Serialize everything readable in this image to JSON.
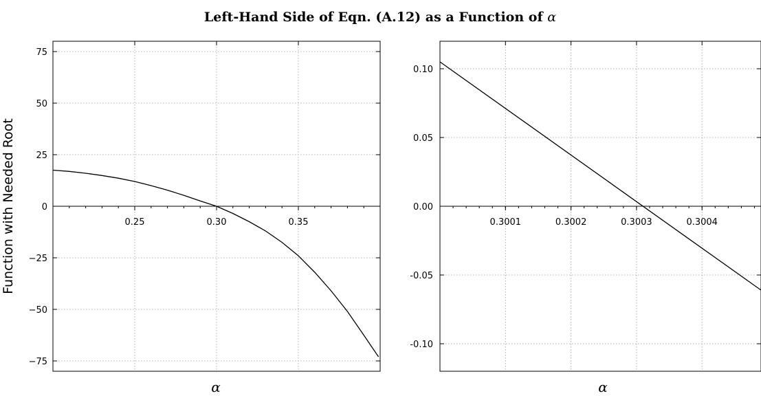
{
  "figure": {
    "title_main": "Left-Hand Side of Eqn. (A.12) as a Function of ",
    "title_symbol": "α"
  },
  "chart_data": [
    {
      "type": "line",
      "xlabel": "α",
      "ylabel": "Function with Needed Root",
      "xlim": [
        0.2,
        0.4
      ],
      "ylim": [
        -80,
        80
      ],
      "xticks": [
        0.25,
        0.3,
        0.35
      ],
      "xtick_labels": [
        "0.25",
        "0.30",
        "0.35"
      ],
      "yticks": [
        75,
        50,
        25,
        0,
        -25,
        -50,
        -75
      ],
      "ytick_labels": [
        "75",
        "50",
        "25",
        "0",
        "−25",
        "−50",
        "−75"
      ],
      "grid": true,
      "x_axis_at_y": 0,
      "series": [
        {
          "x": [
            0.2,
            0.21,
            0.22,
            0.23,
            0.24,
            0.25,
            0.26,
            0.27,
            0.28,
            0.29,
            0.3,
            0.31,
            0.32,
            0.33,
            0.34,
            0.35,
            0.36,
            0.37,
            0.38,
            0.39,
            0.399
          ],
          "y": [
            17.5,
            16.9,
            16.0,
            14.9,
            13.6,
            12.0,
            10.0,
            7.8,
            5.3,
            2.6,
            0.0,
            -3.5,
            -7.5,
            -12.0,
            -17.5,
            -24.0,
            -32.0,
            -41.0,
            -51.0,
            -62.5,
            -73.0
          ]
        }
      ]
    },
    {
      "type": "line",
      "xlabel": "α",
      "ylabel": "",
      "xlim": [
        0.3,
        0.30049
      ],
      "ylim": [
        -0.12,
        0.12
      ],
      "xticks": [
        0.3001,
        0.3002,
        0.3003,
        0.3004
      ],
      "xtick_labels": [
        "0.3001",
        "0.3002",
        "0.3003",
        "0.3004"
      ],
      "yticks": [
        0.1,
        0.05,
        0.0,
        -0.05,
        -0.1
      ],
      "ytick_labels": [
        "0.10",
        "0.05",
        "0.00",
        "-0.05",
        "-0.10"
      ],
      "grid": true,
      "x_axis_at_y": 0,
      "series": [
        {
          "x": [
            0.3,
            0.30049
          ],
          "y": [
            0.105,
            -0.061
          ]
        }
      ]
    }
  ]
}
